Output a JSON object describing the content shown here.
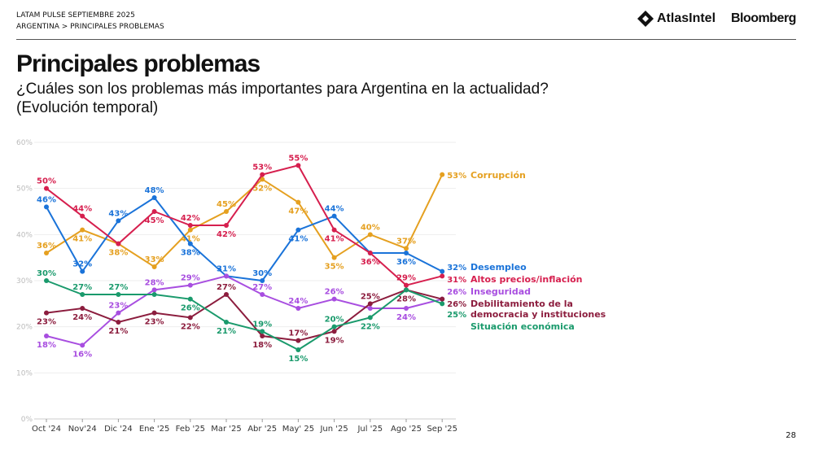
{
  "header": {
    "line1": "LATAM PULSE SEPTIEMBRE 2025",
    "line2": "ARGENTINA > PRINCIPALES PROBLEMAS",
    "logo1": "AtlasIntel",
    "logo2": "Bloomberg"
  },
  "title": "Principales problemas",
  "subtitle": "¿Cuáles son los problemas más importantes para Argentina en la actualidad? (Evolución temporal)",
  "page_number": "28",
  "chart_data": {
    "type": "line",
    "categories": [
      "Oct '24",
      "Nov'24",
      "Dic '24",
      "Ene '25",
      "Feb '25",
      "Mar '25",
      "Abr '25",
      "May' 25",
      "Jun '25",
      "Jul '25",
      "Ago '25",
      "Sep '25"
    ],
    "ylim": [
      0,
      60
    ],
    "yticks": [
      "0%",
      "10%",
      "20%",
      "30%",
      "40%",
      "50%",
      "60%"
    ],
    "grid": true,
    "legend": "right-end labels",
    "series": [
      {
        "name": "Corrupción",
        "color": "#e5a020",
        "values": [
          36,
          41,
          38,
          33,
          41,
          45,
          52,
          47,
          35,
          40,
          37,
          53
        ],
        "labels": [
          1,
          1,
          1,
          1,
          1,
          1,
          1,
          1,
          1,
          1,
          1,
          1
        ],
        "label_pos": [
          "a",
          "b",
          "b",
          "a",
          "b",
          "a",
          "b",
          "b",
          "b",
          "a",
          "a",
          "r"
        ]
      },
      {
        "name": "Desempleo",
        "color": "#1a73d9",
        "values": [
          46,
          32,
          43,
          48,
          38,
          31,
          30,
          41,
          44,
          36,
          36,
          32
        ],
        "labels": [
          1,
          1,
          1,
          1,
          1,
          1,
          1,
          1,
          1,
          0,
          1,
          1
        ],
        "label_pos": [
          "a",
          "a",
          "a",
          "a",
          "b",
          "a",
          "a",
          "b",
          "a",
          "a",
          "b",
          "r"
        ]
      },
      {
        "name": "Altos precios/inflación",
        "color": "#d61f4e",
        "values": [
          50,
          44,
          38,
          45,
          42,
          42,
          53,
          55,
          41,
          36,
          29,
          31
        ],
        "labels": [
          1,
          1,
          0,
          1,
          1,
          1,
          1,
          1,
          1,
          1,
          1,
          1
        ],
        "label_pos": [
          "a",
          "a",
          "a",
          "b",
          "a",
          "b",
          "a",
          "a",
          "b",
          "b",
          "a",
          "r"
        ]
      },
      {
        "name": "Inseguridad",
        "color": "#a84ee0",
        "values": [
          18,
          16,
          23,
          28,
          29,
          31,
          27,
          24,
          26,
          24,
          24,
          26
        ],
        "labels": [
          1,
          1,
          1,
          1,
          1,
          0,
          1,
          1,
          1,
          0,
          1,
          1
        ],
        "label_pos": [
          "b",
          "b",
          "a",
          "a",
          "a",
          "a",
          "a",
          "a",
          "a",
          "a",
          "b",
          "r"
        ]
      },
      {
        "name": "Debilitamiento de la democracia y instituciones",
        "color": "#8c1d3e",
        "values": [
          23,
          24,
          21,
          23,
          22,
          27,
          18,
          17,
          19,
          25,
          28,
          26
        ],
        "labels": [
          1,
          1,
          1,
          1,
          1,
          1,
          1,
          1,
          1,
          1,
          1,
          1
        ],
        "label_pos": [
          "b",
          "b",
          "b",
          "b",
          "b",
          "a",
          "b",
          "a",
          "b",
          "a",
          "b",
          "r"
        ]
      },
      {
        "name": "Situación económica",
        "color": "#1a9a6c",
        "values": [
          30,
          27,
          27,
          27,
          26,
          21,
          19,
          15,
          20,
          22,
          28,
          25
        ],
        "labels": [
          1,
          1,
          1,
          0,
          1,
          1,
          1,
          1,
          1,
          1,
          0,
          1
        ],
        "label_pos": [
          "a",
          "a",
          "a",
          "a",
          "b",
          "b",
          "a",
          "b",
          "a",
          "b",
          "a",
          "r"
        ]
      }
    ]
  }
}
